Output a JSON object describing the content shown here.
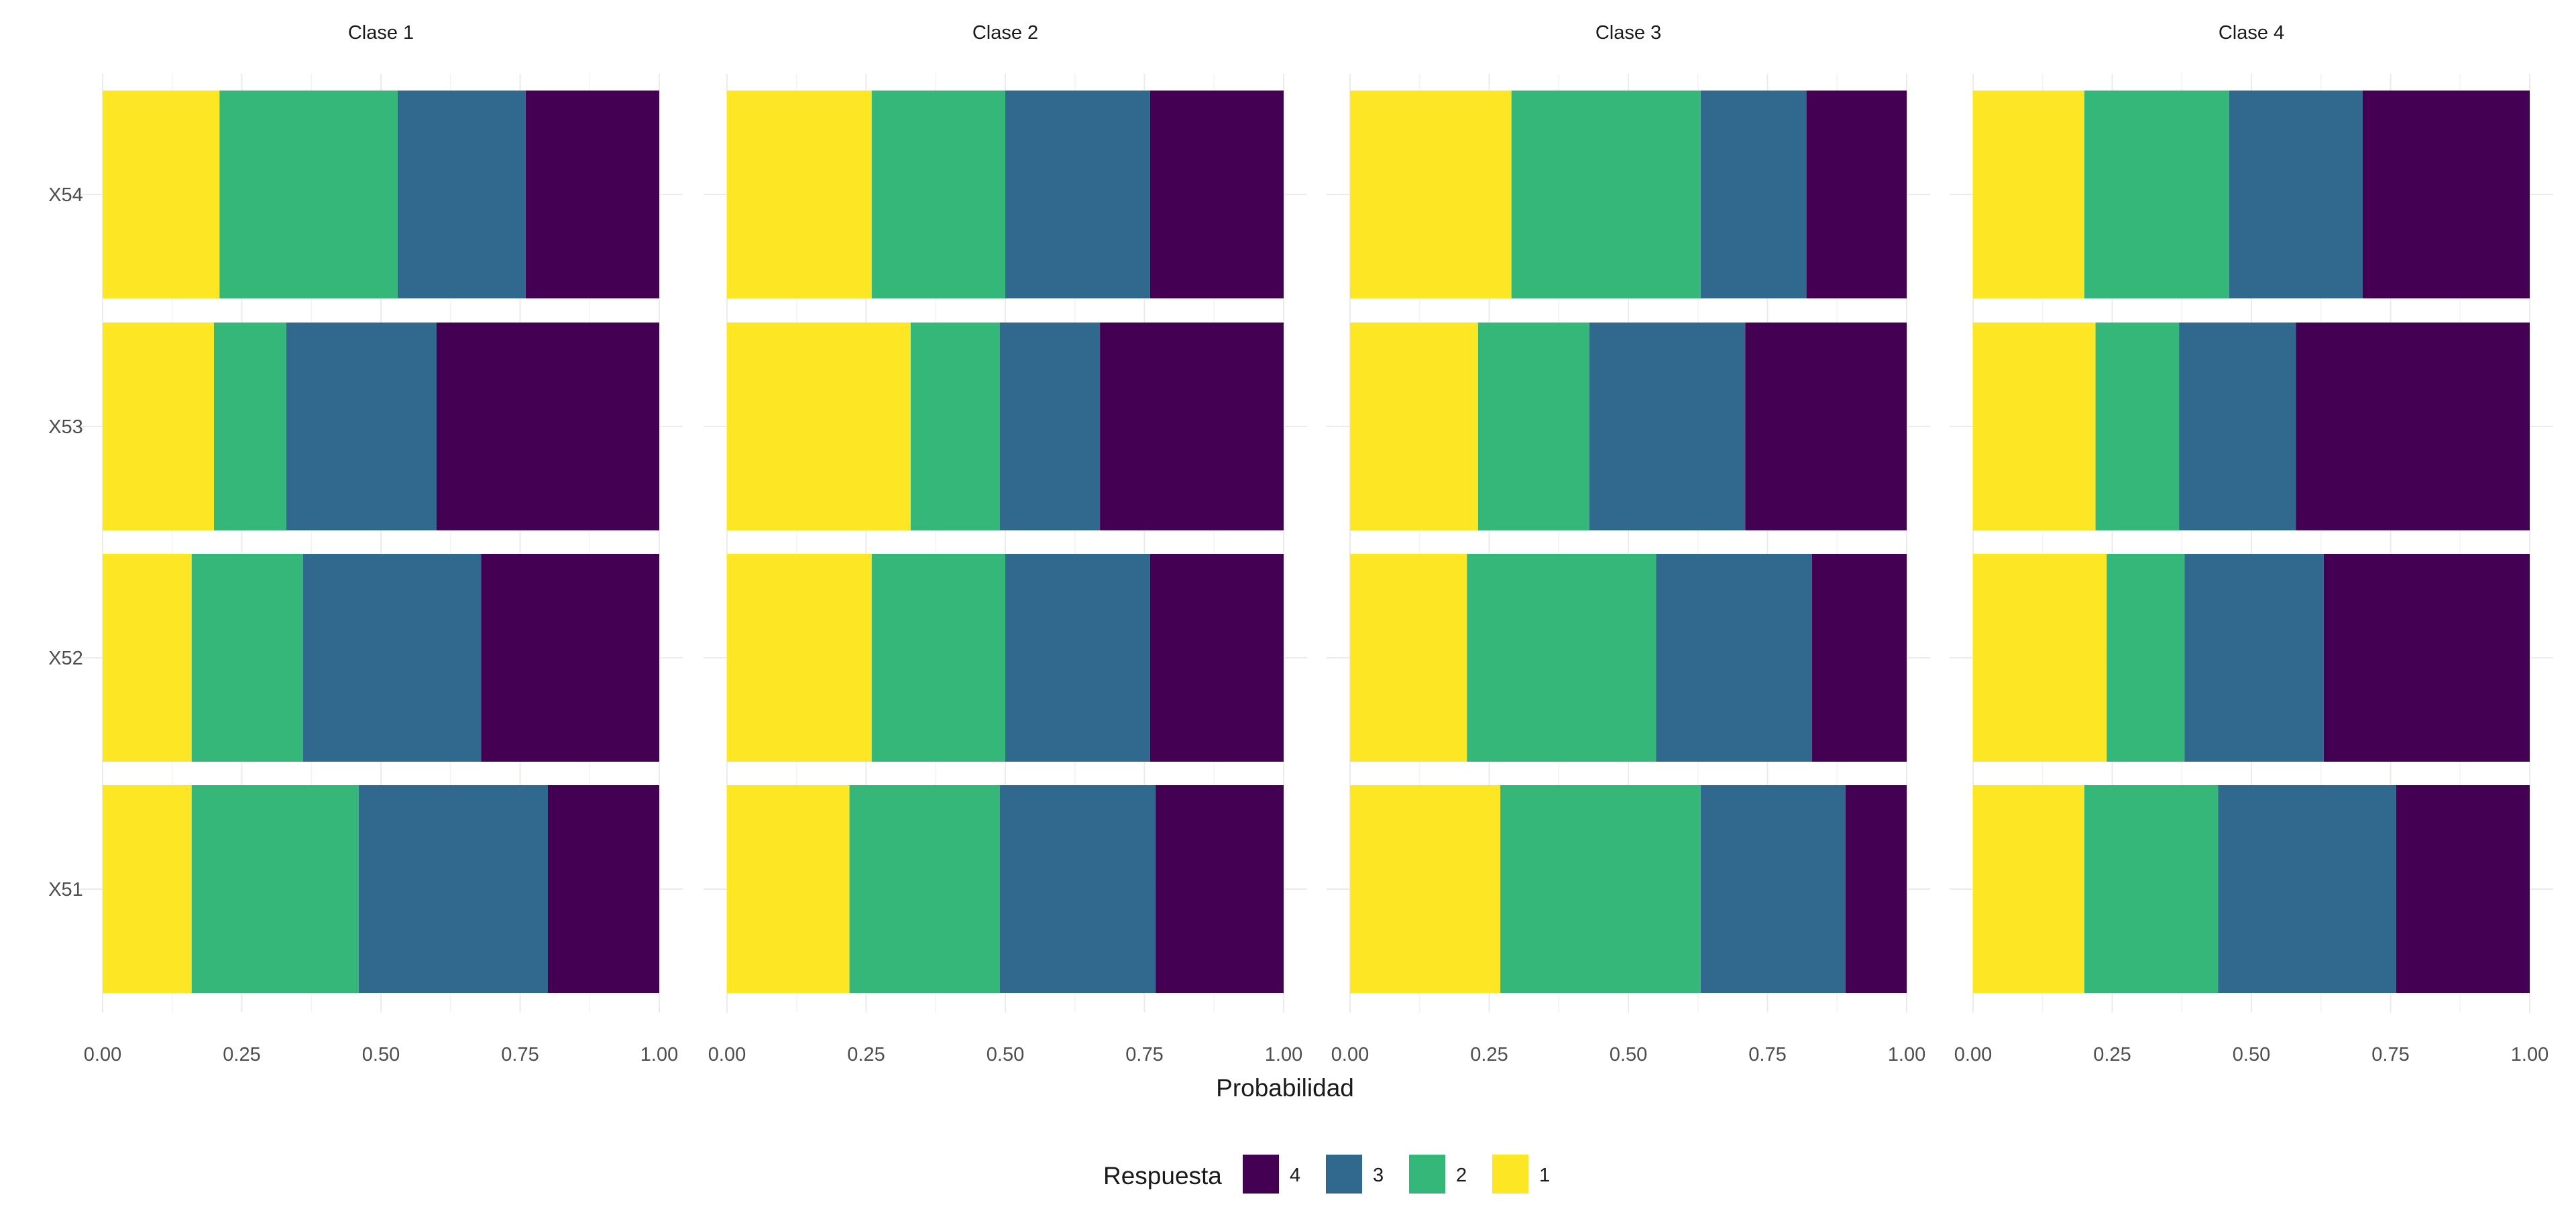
{
  "chart_data": {
    "type": "bar",
    "orientation": "horizontal",
    "stacked": true,
    "facets": [
      "Clase 1",
      "Clase 2",
      "Clase 3",
      "Clase 4"
    ],
    "categories": [
      "X54",
      "X53",
      "X52",
      "X51"
    ],
    "xlabel": "Probabilidad",
    "ylabel": "",
    "xlim": [
      0,
      1
    ],
    "x_ticks": [
      "0.00",
      "0.25",
      "0.50",
      "0.75",
      "1.00"
    ],
    "grid": true,
    "legend": {
      "title": "Respuesta",
      "placement": "bottom",
      "entries": [
        "4",
        "3",
        "2",
        "1"
      ]
    },
    "stack_order": [
      "1",
      "2",
      "3",
      "4"
    ],
    "colors": {
      "1": "#FDE725",
      "2": "#35B779",
      "3": "#31688E",
      "4": "#440154"
    },
    "panels": [
      {
        "facet": "Clase 1",
        "series": [
          {
            "name": "1",
            "values": [
              0.21,
              0.2,
              0.16,
              0.16
            ]
          },
          {
            "name": "2",
            "values": [
              0.32,
              0.13,
              0.2,
              0.3
            ]
          },
          {
            "name": "3",
            "values": [
              0.23,
              0.27,
              0.32,
              0.34
            ]
          },
          {
            "name": "4",
            "values": [
              0.24,
              0.4,
              0.32,
              0.2
            ]
          }
        ]
      },
      {
        "facet": "Clase 2",
        "series": [
          {
            "name": "1",
            "values": [
              0.26,
              0.33,
              0.26,
              0.22
            ]
          },
          {
            "name": "2",
            "values": [
              0.24,
              0.16,
              0.24,
              0.27
            ]
          },
          {
            "name": "3",
            "values": [
              0.26,
              0.18,
              0.26,
              0.28
            ]
          },
          {
            "name": "4",
            "values": [
              0.24,
              0.33,
              0.24,
              0.23
            ]
          }
        ]
      },
      {
        "facet": "Clase 3",
        "series": [
          {
            "name": "1",
            "values": [
              0.29,
              0.23,
              0.21,
              0.27
            ]
          },
          {
            "name": "2",
            "values": [
              0.34,
              0.2,
              0.34,
              0.36
            ]
          },
          {
            "name": "3",
            "values": [
              0.19,
              0.28,
              0.28,
              0.26
            ]
          },
          {
            "name": "4",
            "values": [
              0.18,
              0.29,
              0.17,
              0.11
            ]
          }
        ]
      },
      {
        "facet": "Clase 4",
        "series": [
          {
            "name": "1",
            "values": [
              0.2,
              0.22,
              0.24,
              0.2
            ]
          },
          {
            "name": "2",
            "values": [
              0.26,
              0.15,
              0.14,
              0.24
            ]
          },
          {
            "name": "3",
            "values": [
              0.24,
              0.21,
              0.25,
              0.32
            ]
          },
          {
            "name": "4",
            "values": [
              0.3,
              0.42,
              0.37,
              0.24
            ]
          }
        ]
      }
    ]
  }
}
